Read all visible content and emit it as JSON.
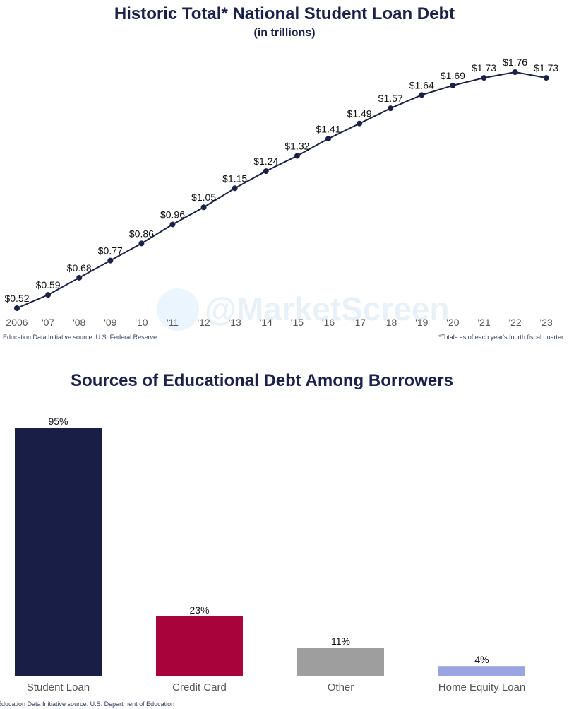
{
  "chart_data": [
    {
      "type": "line",
      "title": "Historic Total* National Student Loan Debt",
      "subtitle": "(in trillions)",
      "x": [
        "2006",
        "'07",
        "'08",
        "'09",
        "'10",
        "'11",
        "'12",
        "'13",
        "'14",
        "'15",
        "'16",
        "'17",
        "'18",
        "'19",
        "'20",
        "'21",
        "'22",
        "'23"
      ],
      "values": [
        0.52,
        0.59,
        0.68,
        0.77,
        0.86,
        0.96,
        1.05,
        1.15,
        1.24,
        1.32,
        1.41,
        1.49,
        1.57,
        1.64,
        1.69,
        1.73,
        1.76,
        1.73
      ],
      "data_labels": [
        "$0.52",
        "$0.59",
        "$0.68",
        "$0.77",
        "$0.86",
        "$0.96",
        "$1.05",
        "$1.15",
        "$1.24",
        "$1.32",
        "$1.41",
        "$1.49",
        "$1.57",
        "$1.64",
        "$1.69",
        "$1.73",
        "$1.76",
        "$1.73"
      ],
      "source": "Education Data Initiative source: U.S. Federal Reserve",
      "footnote": "*Totals as of each year's fourth fiscal quarter.",
      "line_color": "#1b2148",
      "grid": false
    },
    {
      "type": "bar",
      "title": "Sources of Educational Debt Among Borrowers",
      "categories": [
        "Student Loan",
        "Credit Card",
        "Other",
        "Home Equity Loan"
      ],
      "values": [
        95,
        23,
        11,
        4
      ],
      "data_labels": [
        "95%",
        "23%",
        "11%",
        "4%"
      ],
      "colors": [
        "#181e45",
        "#a8033b",
        "#9e9e9e",
        "#98a5e2"
      ],
      "source": "Education Data Initiative source: U.S. Department of Education",
      "grid": false
    }
  ],
  "watermark": {
    "text": "@MarketScreen",
    "icon": "telegram-icon"
  }
}
